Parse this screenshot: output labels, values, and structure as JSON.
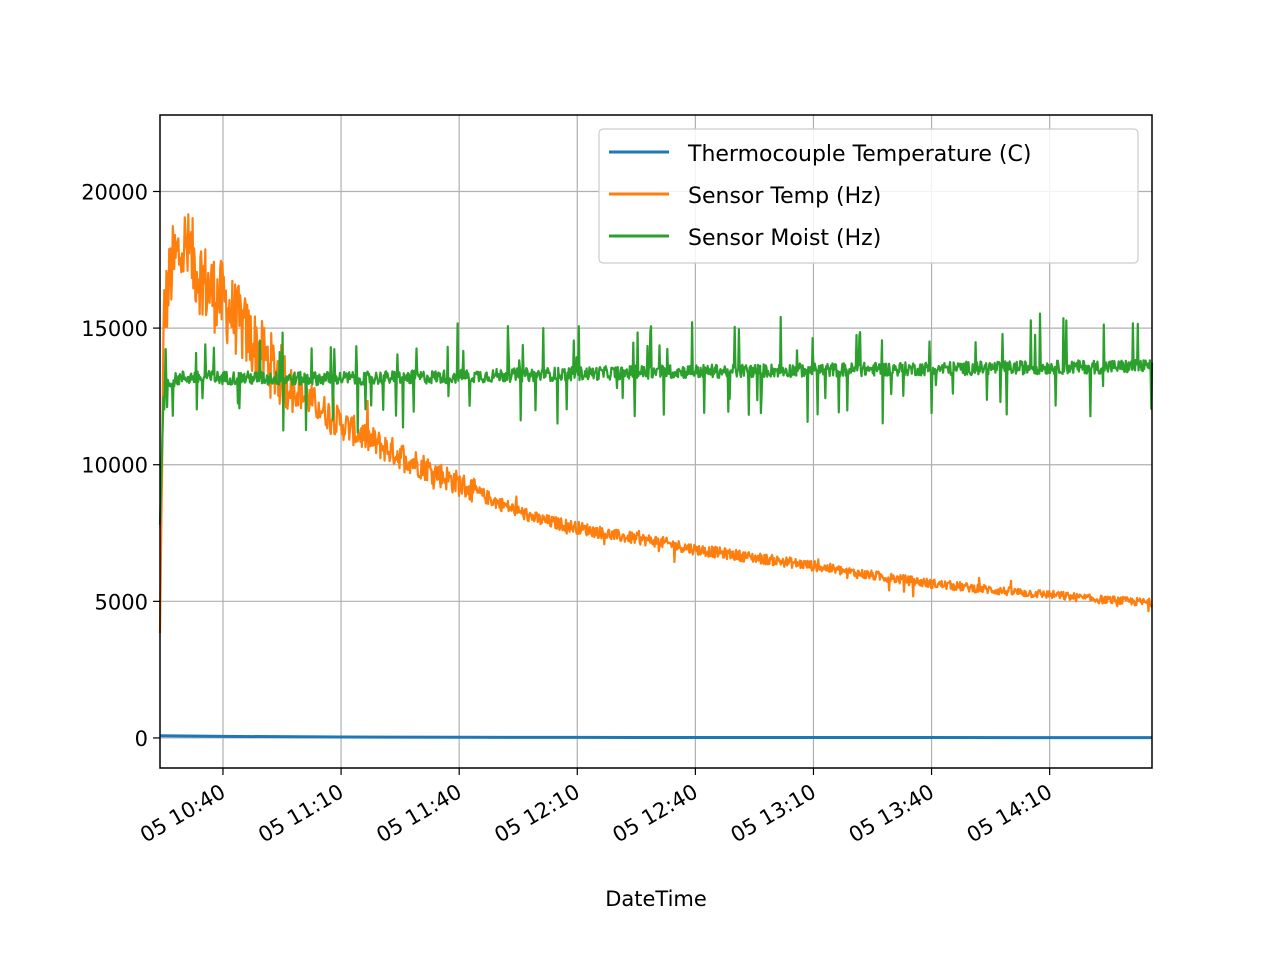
{
  "chart_data": {
    "type": "line",
    "title": "",
    "xlabel": "DateTime",
    "ylabel": "",
    "ylim": [
      -1100,
      22800
    ],
    "xlim": [
      "05 10:24",
      "05 14:36"
    ],
    "yticks": [
      0,
      5000,
      10000,
      15000,
      20000
    ],
    "xticks": [
      "05 10:40",
      "05 11:10",
      "05 11:40",
      "05 12:10",
      "05 12:40",
      "05 13:10",
      "05 13:40",
      "05 14:10"
    ],
    "grid": true,
    "legend_position": "top-right",
    "series": [
      {
        "name": "Thermocouple Temperature (C)",
        "color": "#1f77b4",
        "x": [
          "05 10:24",
          "05 10:40",
          "05 11:10",
          "05 11:40",
          "05 12:10",
          "05 12:40",
          "05 13:10",
          "05 13:40",
          "05 14:10",
          "05 14:36"
        ],
        "y": [
          80,
          55,
          35,
          25,
          20,
          18,
          16,
          15,
          14,
          13
        ]
      },
      {
        "name": "Sensor Temp (Hz)",
        "color": "#ff7f0e",
        "x": [
          "05 10:24",
          "05 10:25",
          "05 10:27",
          "05 10:30",
          "05 10:33",
          "05 10:36",
          "05 10:40",
          "05 10:45",
          "05 10:50",
          "05 10:55",
          "05 11:00",
          "05 11:10",
          "05 11:20",
          "05 11:30",
          "05 11:40",
          "05 11:50",
          "05 12:00",
          "05 12:10",
          "05 12:20",
          "05 12:30",
          "05 12:40",
          "05 12:50",
          "05 13:00",
          "05 13:10",
          "05 13:20",
          "05 13:30",
          "05 13:40",
          "05 13:50",
          "05 14:00",
          "05 14:10",
          "05 14:20",
          "05 14:30",
          "05 14:36"
        ],
        "y": [
          3800,
          15500,
          17200,
          18000,
          17300,
          16500,
          16000,
          15000,
          14000,
          13200,
          12600,
          11500,
          10700,
          10000,
          9300,
          8600,
          8000,
          7700,
          7400,
          7200,
          6900,
          6700,
          6500,
          6300,
          6050,
          5850,
          5650,
          5500,
          5350,
          5250,
          5100,
          5000,
          4950
        ]
      },
      {
        "name": "Sensor Moist (Hz)",
        "color": "#2ca02c",
        "x": [
          "05 10:24",
          "05 10:25",
          "05 10:30",
          "05 11:00",
          "05 11:30",
          "05 12:00",
          "05 12:30",
          "05 13:00",
          "05 13:30",
          "05 14:00",
          "05 14:36"
        ],
        "y": [
          7800,
          13000,
          13200,
          13150,
          13200,
          13300,
          13400,
          13450,
          13500,
          13550,
          13600
        ]
      }
    ]
  }
}
